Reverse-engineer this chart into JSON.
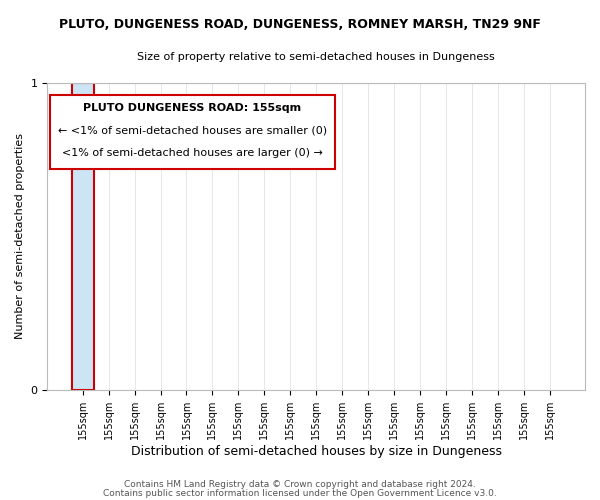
{
  "title": "PLUTO, DUNGENESS ROAD, DUNGENESS, ROMNEY MARSH, TN29 9NF",
  "subtitle": "Size of property relative to semi-detached houses in Dungeness",
  "xlabel": "Distribution of semi-detached houses by size in Dungeness",
  "ylabel": "Number of semi-detached properties",
  "footer_line1": "Contains HM Land Registry data © Crown copyright and database right 2024.",
  "footer_line2": "Contains public sector information licensed under the Open Government Licence v3.0.",
  "annotation_title": "PLUTO DUNGENESS ROAD: 155sqm",
  "annotation_line1": "← <1% of semi-detached houses are smaller (0)",
  "annotation_line2": "<1% of semi-detached houses are larger (0) →",
  "bar_color": "#cce5f5",
  "bar_edge_color": "#b0cce0",
  "n_bars": 19,
  "bar_label": "155sqm",
  "bar_heights": [
    1,
    0,
    0,
    0,
    0,
    0,
    0,
    0,
    0,
    0,
    0,
    0,
    0,
    0,
    0,
    0,
    0,
    0,
    0
  ],
  "highlight_index": 0,
  "highlight_color": "#cce5f5",
  "highlight_edge_color": "#cc0000",
  "ylim": [
    0,
    1
  ],
  "yticks": [
    0,
    1
  ],
  "annotation_box_color": "#ffffff",
  "annotation_box_edge": "#cc0000",
  "background_color": "#ffffff",
  "grid_color": "#dddddd",
  "title_fontsize": 9,
  "subtitle_fontsize": 8,
  "ylabel_fontsize": 8,
  "xlabel_fontsize": 9,
  "tick_fontsize": 8,
  "xtick_fontsize": 7,
  "annotation_title_fontsize": 8,
  "annotation_text_fontsize": 8,
  "footer_fontsize": 6.5
}
